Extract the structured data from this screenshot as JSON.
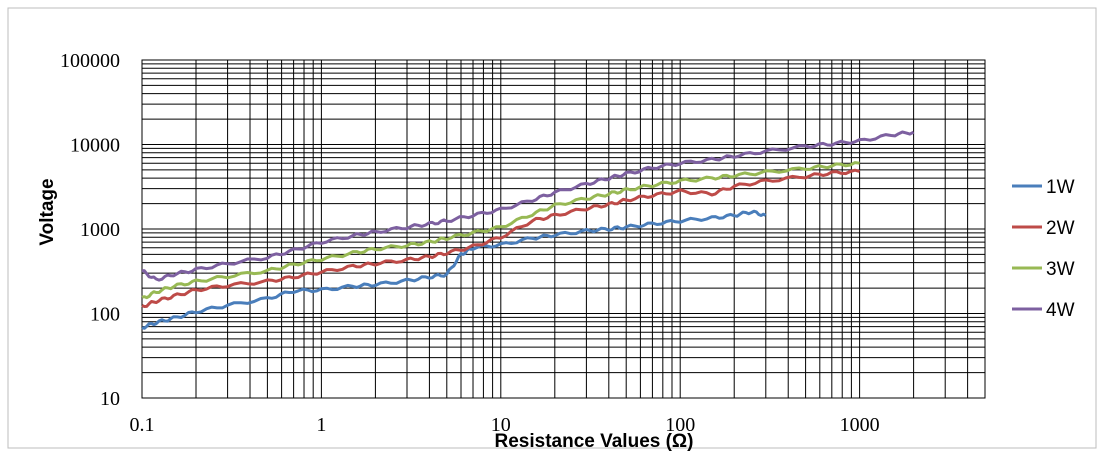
{
  "chart_data": {
    "type": "line",
    "title": "",
    "xlabel": "Resistance Values (Ω)",
    "ylabel": "Voltage",
    "x_scale": "log",
    "y_scale": "log",
    "xlim": [
      0.1,
      5000
    ],
    "ylim": [
      10,
      100000
    ],
    "x_ticks": [
      "0.1",
      "1",
      "10",
      "100",
      "1000"
    ],
    "y_ticks": [
      "100000",
      "10000",
      "1000",
      "100",
      "10"
    ],
    "grid": true,
    "legend_position": "right",
    "series": [
      {
        "name": "1W",
        "color": "#4a7ebb",
        "points": [
          [
            0.1,
            68
          ],
          [
            0.12,
            78
          ],
          [
            0.15,
            88
          ],
          [
            0.2,
            105
          ],
          [
            0.3,
            125
          ],
          [
            0.5,
            150
          ],
          [
            0.7,
            185
          ],
          [
            1,
            190
          ],
          [
            1.5,
            210
          ],
          [
            2,
            220
          ],
          [
            3,
            245
          ],
          [
            4,
            270
          ],
          [
            5,
            290
          ],
          [
            6,
            500
          ],
          [
            7,
            600
          ],
          [
            10,
            650
          ],
          [
            15,
            780
          ],
          [
            20,
            850
          ],
          [
            30,
            950
          ],
          [
            40,
            1000
          ],
          [
            50,
            1050
          ],
          [
            70,
            1150
          ],
          [
            100,
            1250
          ],
          [
            150,
            1350
          ],
          [
            200,
            1450
          ],
          [
            250,
            1600
          ],
          [
            300,
            1450
          ]
        ]
      },
      {
        "name": "2W",
        "color": "#be4b48",
        "points": [
          [
            0.1,
            120
          ],
          [
            0.12,
            140
          ],
          [
            0.15,
            160
          ],
          [
            0.2,
            190
          ],
          [
            0.3,
            215
          ],
          [
            0.5,
            240
          ],
          [
            0.7,
            270
          ],
          [
            1,
            310
          ],
          [
            1.5,
            360
          ],
          [
            2,
            390
          ],
          [
            3,
            430
          ],
          [
            4,
            470
          ],
          [
            5,
            520
          ],
          [
            7,
            620
          ],
          [
            10,
            800
          ],
          [
            15,
            1250
          ],
          [
            20,
            1450
          ],
          [
            30,
            1750
          ],
          [
            40,
            1950
          ],
          [
            50,
            2200
          ],
          [
            70,
            2500
          ],
          [
            100,
            2800
          ],
          [
            150,
            2600
          ],
          [
            200,
            3200
          ],
          [
            300,
            3700
          ],
          [
            500,
            4200
          ],
          [
            700,
            4600
          ],
          [
            1000,
            4800
          ]
        ]
      },
      {
        "name": "3W",
        "color": "#98b954",
        "points": [
          [
            0.1,
            150
          ],
          [
            0.12,
            180
          ],
          [
            0.15,
            210
          ],
          [
            0.2,
            240
          ],
          [
            0.3,
            275
          ],
          [
            0.5,
            320
          ],
          [
            0.7,
            380
          ],
          [
            1,
            440
          ],
          [
            1.5,
            520
          ],
          [
            2,
            580
          ],
          [
            3,
            640
          ],
          [
            4,
            700
          ],
          [
            5,
            780
          ],
          [
            7,
            900
          ],
          [
            10,
            1050
          ],
          [
            15,
            1500
          ],
          [
            20,
            1900
          ],
          [
            30,
            2300
          ],
          [
            40,
            2600
          ],
          [
            50,
            2900
          ],
          [
            70,
            3300
          ],
          [
            100,
            3700
          ],
          [
            150,
            4000
          ],
          [
            200,
            4300
          ],
          [
            300,
            4700
          ],
          [
            500,
            5200
          ],
          [
            700,
            5600
          ],
          [
            1000,
            6000
          ]
        ]
      },
      {
        "name": "4W",
        "color": "#7d60a0",
        "points": [
          [
            0.1,
            320
          ],
          [
            0.12,
            250
          ],
          [
            0.15,
            290
          ],
          [
            0.2,
            330
          ],
          [
            0.3,
            390
          ],
          [
            0.5,
            460
          ],
          [
            0.7,
            560
          ],
          [
            1,
            700
          ],
          [
            1.5,
            830
          ],
          [
            2,
            920
          ],
          [
            3,
            1050
          ],
          [
            4,
            1150
          ],
          [
            5,
            1250
          ],
          [
            7,
            1450
          ],
          [
            10,
            1700
          ],
          [
            15,
            2200
          ],
          [
            20,
            2700
          ],
          [
            30,
            3400
          ],
          [
            40,
            4000
          ],
          [
            50,
            4500
          ],
          [
            70,
            5300
          ],
          [
            100,
            6000
          ],
          [
            150,
            6600
          ],
          [
            200,
            7300
          ],
          [
            300,
            8300
          ],
          [
            500,
            9500
          ],
          [
            700,
            10200
          ],
          [
            1000,
            11000
          ],
          [
            1500,
            13000
          ],
          [
            2000,
            14000
          ]
        ]
      }
    ]
  }
}
